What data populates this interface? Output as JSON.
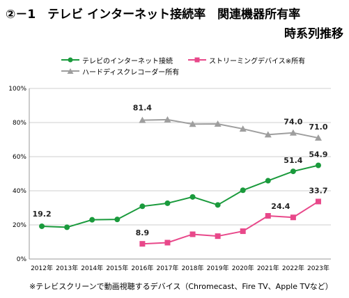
{
  "title_line1": "②－1　テレビ インターネット接続率　関連機器所有率",
  "title_line2": "時系列推移",
  "footnote": "※テレビスクリーンで動画視聴するデバイス（Chromecast、Fire TV、Apple TVなど）",
  "chart_data": {
    "type": "line",
    "categories": [
      "2012年",
      "2013年",
      "2014年",
      "2015年",
      "2016年",
      "2017年",
      "2018年",
      "2019年",
      "2020年",
      "2021年",
      "2022年",
      "2023年"
    ],
    "ylim": [
      0,
      100
    ],
    "yticks": [
      0,
      20,
      40,
      60,
      80,
      100
    ],
    "ytick_labels": [
      "0%",
      "20%",
      "40%",
      "60%",
      "80%",
      "100%"
    ],
    "legend_position": "top-left",
    "grid": "horizontal",
    "series": [
      {
        "name": "テレビのインターネット接続",
        "color": "#1a9a3c",
        "marker": "circle",
        "values": [
          19.2,
          18.6,
          23.0,
          23.2,
          30.9,
          32.7,
          36.4,
          31.7,
          40.3,
          45.9,
          51.4,
          54.9
        ],
        "labels": {
          "0": "19.2",
          "10": "51.4",
          "11": "54.9"
        }
      },
      {
        "name": "ストリーミングデバイス※所有",
        "color": "#e8488a",
        "marker": "square",
        "values": [
          null,
          null,
          null,
          null,
          8.9,
          9.6,
          14.5,
          13.4,
          16.3,
          25.3,
          24.4,
          33.7
        ],
        "labels": {
          "4": "8.9",
          "10": "24.4",
          "11": "33.7"
        }
      },
      {
        "name": "ハードディスクレコーダー所有",
        "color": "#9e9e9e",
        "marker": "triangle",
        "values": [
          null,
          null,
          null,
          null,
          81.4,
          81.7,
          79.1,
          79.2,
          76.3,
          72.9,
          74.0,
          71.0
        ],
        "labels": {
          "4": "81.4",
          "10": "74.0",
          "11": "71.0"
        }
      }
    ]
  }
}
